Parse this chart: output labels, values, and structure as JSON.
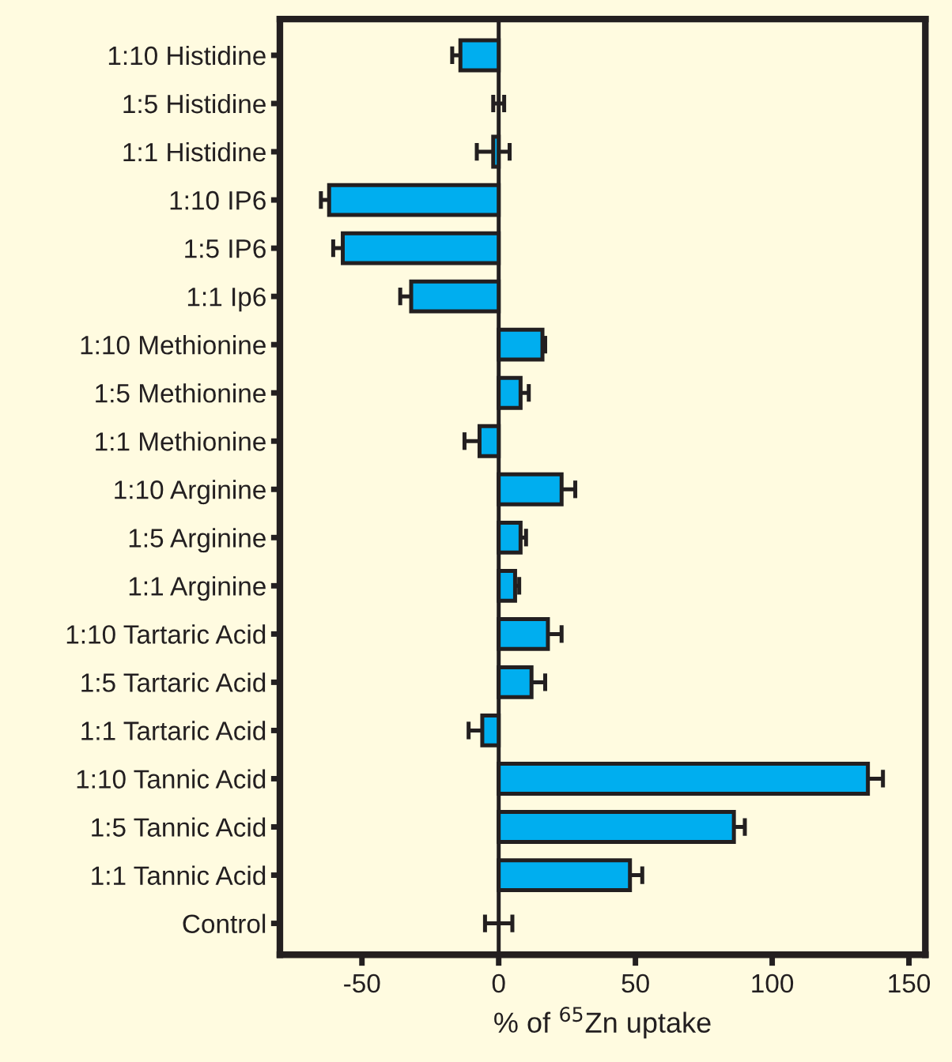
{
  "chart_data": {
    "type": "bar",
    "orientation": "horizontal",
    "xlabel": "% of $^{65}$Zn uptake",
    "categories": [
      "1:10 Histidine",
      "1:5 Histidine",
      "1:1 Histidine",
      "1:10 IP6",
      "1:5 IP6",
      "1:1 Ip6",
      "1:10 Methionine",
      "1:5 Methionine",
      "1:1 Methionine",
      "1:10 Arginine",
      "1:5 Arginine",
      "1:1 Arginine",
      "1:10 Tartaric Acid",
      "1:5 Tartaric Acid",
      "1:1 Tartaric Acid",
      "1:10 Tannic Acid",
      "1:5 Tannic Acid",
      "1:1 Tannic Acid",
      "Control"
    ],
    "values": [
      -14,
      0,
      -2,
      -62,
      -57,
      -32,
      16,
      8,
      -7,
      23,
      8,
      6,
      18,
      12,
      -6,
      135,
      86,
      48,
      0
    ],
    "errors": [
      3,
      2,
      6,
      3,
      3.5,
      4,
      1,
      3,
      5.5,
      5,
      2,
      1.5,
      5,
      5,
      5,
      5.5,
      4,
      4.5,
      5
    ],
    "color": "#00aeef",
    "xlim": [
      -80,
      156
    ],
    "xticks": [
      -50,
      0,
      50,
      100,
      150
    ],
    "ref_lines": [
      {
        "axis": "x",
        "value": 0,
        "color": "#231f20"
      }
    ],
    "grid": false
  }
}
